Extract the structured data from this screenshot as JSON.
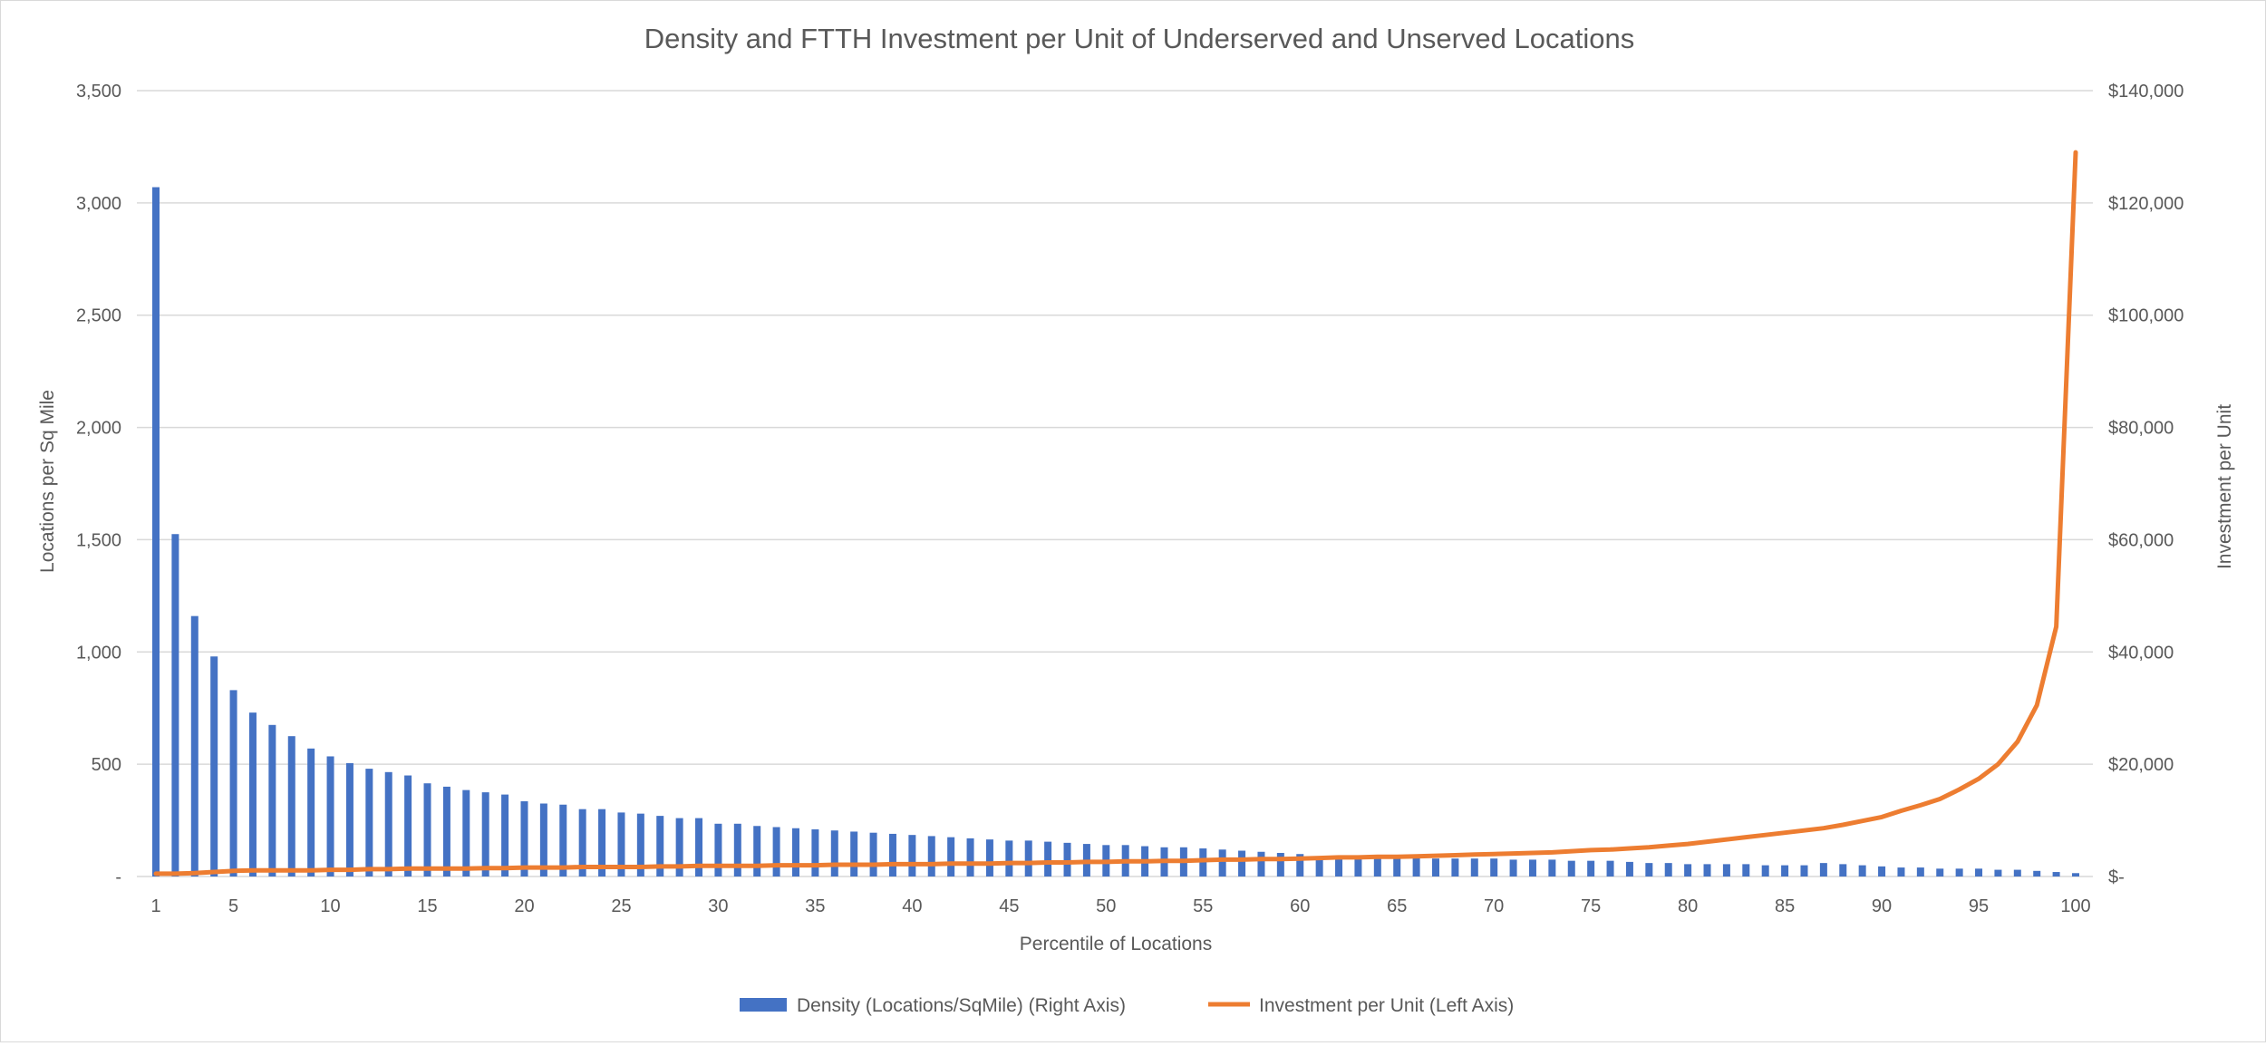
{
  "chart_data": {
    "type": "bar+line",
    "title": "Density and FTTH Investment per Unit of Underserved and Unserved Locations",
    "xlabel": "Percentile of Locations",
    "ylabel_left": "Locations per Sq Mile",
    "ylabel_right": "Investment per Unit",
    "x": [
      1,
      2,
      3,
      4,
      5,
      6,
      7,
      8,
      9,
      10,
      11,
      12,
      13,
      14,
      15,
      16,
      17,
      18,
      19,
      20,
      21,
      22,
      23,
      24,
      25,
      26,
      27,
      28,
      29,
      30,
      31,
      32,
      33,
      34,
      35,
      36,
      37,
      38,
      39,
      40,
      41,
      42,
      43,
      44,
      45,
      46,
      47,
      48,
      49,
      50,
      51,
      52,
      53,
      54,
      55,
      56,
      57,
      58,
      59,
      60,
      61,
      62,
      63,
      64,
      65,
      66,
      67,
      68,
      69,
      70,
      71,
      72,
      73,
      74,
      75,
      76,
      77,
      78,
      79,
      80,
      81,
      82,
      83,
      84,
      85,
      86,
      87,
      88,
      89,
      90,
      91,
      92,
      93,
      94,
      95,
      96,
      97,
      98,
      99,
      100
    ],
    "x_tick_labels": [
      "1",
      "5",
      "10",
      "15",
      "20",
      "25",
      "30",
      "35",
      "40",
      "45",
      "50",
      "55",
      "60",
      "65",
      "70",
      "75",
      "80",
      "85",
      "90",
      "95",
      "100"
    ],
    "x_tick_values": [
      1,
      5,
      10,
      15,
      20,
      25,
      30,
      35,
      40,
      45,
      50,
      55,
      60,
      65,
      70,
      75,
      80,
      85,
      90,
      95,
      100
    ],
    "left_axis": {
      "range": [
        0,
        3500
      ],
      "ticks": [
        0,
        500,
        1000,
        1500,
        2000,
        2500,
        3000,
        3500
      ],
      "tick_labels": [
        "-",
        "500",
        "1,000",
        "1,500",
        "2,000",
        "2,500",
        "3,000",
        "3,500"
      ]
    },
    "right_axis": {
      "range": [
        0,
        140000
      ],
      "ticks": [
        0,
        20000,
        40000,
        60000,
        80000,
        100000,
        120000,
        140000
      ],
      "tick_labels": [
        "$-",
        "$20,000",
        "$40,000",
        "$60,000",
        "$80,000",
        "$100,000",
        "$120,000",
        "$140,000"
      ]
    },
    "gridlines": true,
    "legend_position": "bottom",
    "series": [
      {
        "name": "Density (Locations/SqMile) (Right Axis)",
        "type": "bar",
        "axis": "left",
        "color": "#4472c4",
        "values": [
          3070,
          1525,
          1160,
          980,
          830,
          730,
          675,
          625,
          570,
          535,
          505,
          480,
          465,
          450,
          415,
          400,
          385,
          375,
          365,
          335,
          325,
          320,
          300,
          300,
          285,
          280,
          270,
          260,
          260,
          235,
          235,
          225,
          220,
          215,
          210,
          205,
          200,
          195,
          190,
          185,
          180,
          175,
          170,
          165,
          160,
          160,
          155,
          150,
          145,
          140,
          140,
          135,
          130,
          130,
          125,
          120,
          115,
          110,
          105,
          100,
          90,
          90,
          90,
          85,
          85,
          85,
          80,
          80,
          80,
          80,
          75,
          75,
          75,
          70,
          70,
          70,
          65,
          60,
          60,
          55,
          55,
          55,
          55,
          50,
          50,
          50,
          60,
          55,
          50,
          45,
          40,
          40,
          35,
          35,
          35,
          30,
          30,
          25,
          20,
          15
        ]
      },
      {
        "name": "Investment per Unit (Left Axis)",
        "type": "line",
        "axis": "right",
        "color": "#ed7d31",
        "values": [
          500,
          500,
          600,
          800,
          1000,
          1100,
          1100,
          1100,
          1100,
          1200,
          1200,
          1300,
          1300,
          1400,
          1400,
          1400,
          1400,
          1500,
          1500,
          1600,
          1600,
          1600,
          1700,
          1700,
          1700,
          1700,
          1800,
          1800,
          1900,
          1900,
          1900,
          1900,
          2000,
          2000,
          2000,
          2100,
          2100,
          2100,
          2200,
          2200,
          2200,
          2300,
          2300,
          2300,
          2400,
          2400,
          2500,
          2500,
          2600,
          2600,
          2700,
          2700,
          2800,
          2800,
          2900,
          3000,
          3000,
          3100,
          3100,
          3200,
          3300,
          3400,
          3400,
          3500,
          3500,
          3600,
          3700,
          3800,
          3900,
          4000,
          4100,
          4200,
          4300,
          4500,
          4700,
          4800,
          5000,
          5200,
          5500,
          5800,
          6200,
          6600,
          7000,
          7400,
          7800,
          8200,
          8600,
          9200,
          9900,
          10600,
          11700,
          12700,
          13800,
          15500,
          17400,
          20000,
          24000,
          30500,
          44500,
          129000
        ]
      }
    ]
  }
}
